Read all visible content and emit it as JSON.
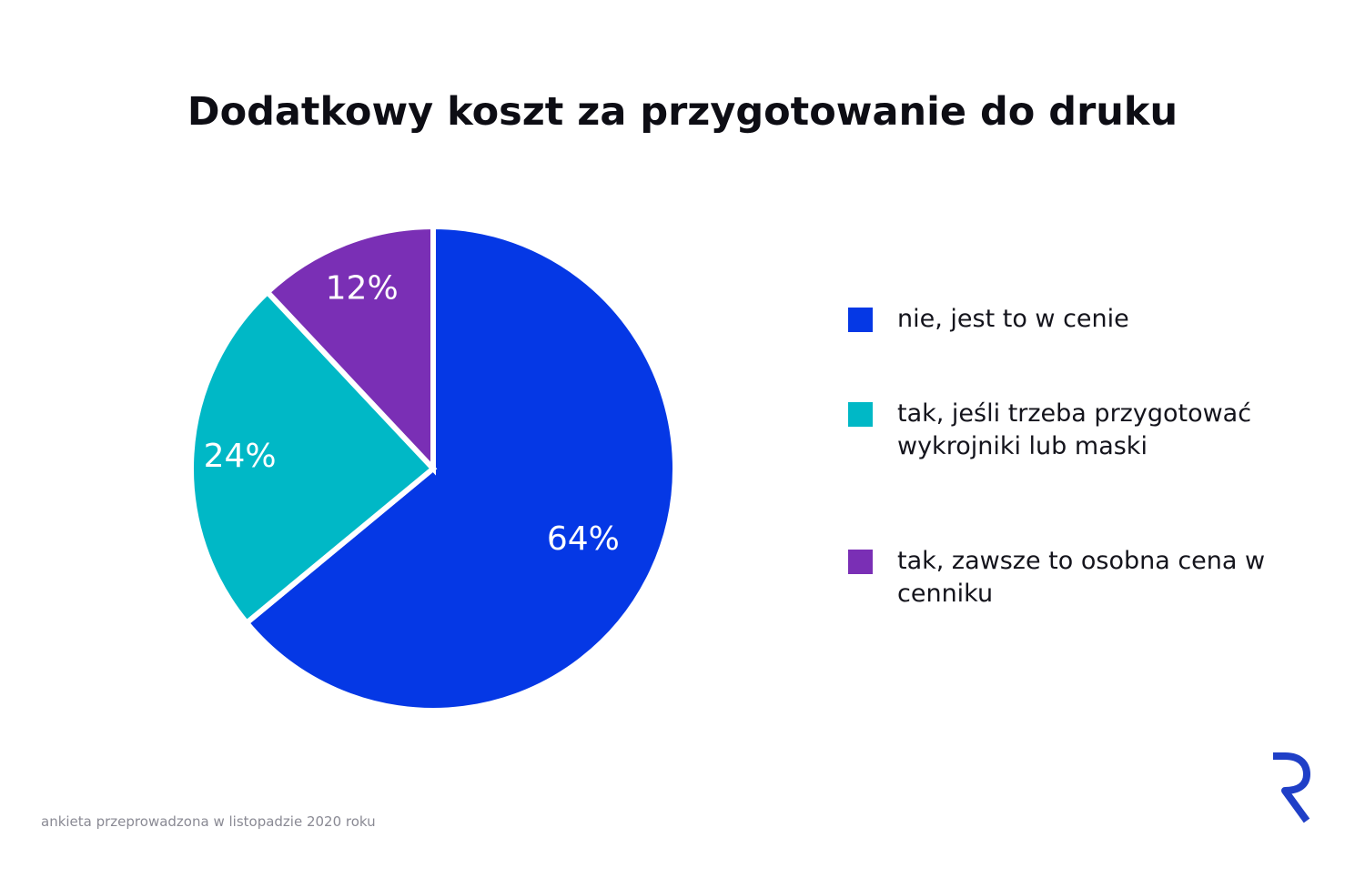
{
  "chart_data": {
    "type": "pie",
    "title": "Dodatkowy koszt za przygotowanie do druku",
    "slices": [
      {
        "label": "nie, jest to w cenie",
        "value": 64,
        "value_label": "64%",
        "color": "#0538e5"
      },
      {
        "label": "tak, jeśli trzeba przygotować wykrojniki lub maski",
        "value": 24,
        "value_label": "24%",
        "color": "#00b8c6"
      },
      {
        "label": "tak, zawsze to osobna cena w cenniku",
        "value": 12,
        "value_label": "12%",
        "color": "#7a2fb5"
      }
    ],
    "legend_position": "right"
  },
  "footnote": "ankieta przeprowadzona w listopadzie 2020 roku",
  "brand": {
    "logo_icon": "r-logo-icon",
    "color": "#1f3fc7"
  }
}
